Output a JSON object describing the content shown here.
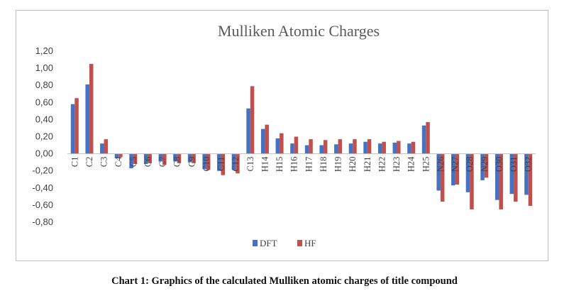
{
  "caption": "Chart 1: Graphics of the calculated Mulliken atomic charges of title compound",
  "chart_data": {
    "type": "bar",
    "title": "Mulliken Atomic Charges",
    "xlabel": "",
    "ylabel": "",
    "ylim": [
      -0.8,
      1.2
    ],
    "ytick_labels": [
      "1,20",
      "1,00",
      "0,80",
      "0,60",
      "0,40",
      "0,20",
      "0,00",
      "-0,20",
      "-0,40",
      "-0,60",
      "-0,80"
    ],
    "grid": false,
    "legend_position": "bottom",
    "categories": [
      "C1",
      "C2",
      "C3",
      "C4",
      "C5",
      "C6",
      "C7",
      "C8",
      "C9",
      "C10",
      "C11",
      "C12",
      "C13",
      "H14",
      "H15",
      "H16",
      "H17",
      "H18",
      "H19",
      "H20",
      "H21",
      "H22",
      "H23",
      "H24",
      "H25",
      "N26",
      "N27",
      "O28",
      "N29",
      "O30",
      "O31",
      "O32"
    ],
    "series": [
      {
        "name": "DFT",
        "color": "#4472c4",
        "values": [
          0.58,
          0.81,
          0.12,
          -0.05,
          -0.17,
          -0.12,
          -0.09,
          -0.09,
          -0.1,
          -0.18,
          -0.2,
          -0.19,
          0.53,
          0.29,
          0.18,
          0.12,
          0.1,
          0.1,
          0.11,
          0.12,
          0.14,
          0.12,
          0.13,
          0.12,
          0.33,
          -0.43,
          -0.37,
          -0.45,
          -0.31,
          -0.54,
          -0.47,
          -0.48
        ]
      },
      {
        "name": "HF",
        "color": "#c0504d",
        "values": [
          0.65,
          1.05,
          0.17,
          -0.04,
          -0.12,
          -0.11,
          -0.13,
          -0.11,
          -0.11,
          -0.19,
          -0.25,
          -0.23,
          0.79,
          0.34,
          0.24,
          0.2,
          0.17,
          0.16,
          0.17,
          0.17,
          0.17,
          0.14,
          0.15,
          0.14,
          0.37,
          -0.56,
          -0.36,
          -0.65,
          -0.28,
          -0.65,
          -0.56,
          -0.61
        ]
      }
    ]
  }
}
